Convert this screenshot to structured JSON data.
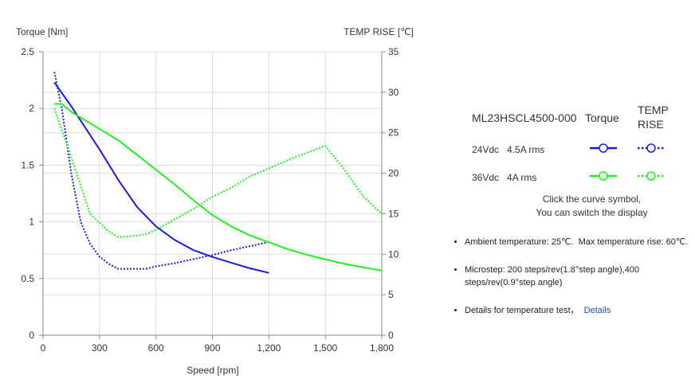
{
  "chart_data": {
    "type": "line",
    "title": "",
    "xlabel": "Speed [rpm]",
    "ylabel": "Torque  [Nm]",
    "ylabel_right": "TEMP RISE [℃]",
    "xlim": [
      0,
      1800
    ],
    "ylim": [
      0,
      2.5
    ],
    "ylim_right": [
      0,
      35
    ],
    "x_ticks": [
      "0",
      "300",
      "600",
      "900",
      "1,200",
      "1,500",
      "1,800"
    ],
    "y_ticks": [
      "0",
      "0.5",
      "1",
      "1.5",
      "2",
      "2.5"
    ],
    "y_right_ticks": [
      "0",
      "5",
      "10",
      "15",
      "20",
      "25",
      "30",
      "35"
    ],
    "grid": true,
    "series": [
      {
        "name": "24Vdc 4.5A rms Torque",
        "axis": "left",
        "color": "#1a1adb",
        "style": "solid",
        "points": [
          [
            60,
            2.23
          ],
          [
            150,
            2.02
          ],
          [
            300,
            1.64
          ],
          [
            400,
            1.37
          ],
          [
            500,
            1.13
          ],
          [
            600,
            0.96
          ],
          [
            700,
            0.84
          ],
          [
            800,
            0.75
          ],
          [
            900,
            0.69
          ],
          [
            1000,
            0.64
          ],
          [
            1100,
            0.59
          ],
          [
            1200,
            0.55
          ]
        ]
      },
      {
        "name": "24Vdc 4.5A rms TEMP RISE",
        "axis": "right",
        "color": "#1a1adb",
        "style": "dotted",
        "points": [
          [
            60,
            32.5
          ],
          [
            100,
            28
          ],
          [
            150,
            20
          ],
          [
            200,
            14
          ],
          [
            250,
            11.3
          ],
          [
            300,
            9.7
          ],
          [
            350,
            8.8
          ],
          [
            400,
            8.2
          ],
          [
            450,
            8.2
          ],
          [
            500,
            8.2
          ],
          [
            550,
            8.2
          ],
          [
            600,
            8.5
          ],
          [
            700,
            8.9
          ],
          [
            800,
            9.4
          ],
          [
            900,
            9.9
          ],
          [
            1000,
            10.5
          ],
          [
            1100,
            11.0
          ],
          [
            1200,
            11.5
          ]
        ]
      },
      {
        "name": "36Vdc 4A rms Torque",
        "axis": "left",
        "color": "#22ee22",
        "style": "solid",
        "points": [
          [
            60,
            2.04
          ],
          [
            100,
            2.04
          ],
          [
            150,
            1.97
          ],
          [
            250,
            1.87
          ],
          [
            300,
            1.82
          ],
          [
            400,
            1.72
          ],
          [
            500,
            1.59
          ],
          [
            600,
            1.46
          ],
          [
            700,
            1.33
          ],
          [
            800,
            1.19
          ],
          [
            900,
            1.06
          ],
          [
            1000,
            0.96
          ],
          [
            1100,
            0.88
          ],
          [
            1200,
            0.82
          ],
          [
            1300,
            0.76
          ],
          [
            1400,
            0.71
          ],
          [
            1500,
            0.67
          ],
          [
            1600,
            0.63
          ],
          [
            1700,
            0.6
          ],
          [
            1800,
            0.57
          ]
        ]
      },
      {
        "name": "36Vdc 4A rms TEMP RISE",
        "axis": "right",
        "color": "#22ee22",
        "style": "dotted",
        "points": [
          [
            60,
            28
          ],
          [
            150,
            22
          ],
          [
            250,
            15
          ],
          [
            350,
            12.8
          ],
          [
            400,
            12.1
          ],
          [
            500,
            12.3
          ],
          [
            550,
            12.5
          ],
          [
            600,
            13
          ],
          [
            700,
            14.3
          ],
          [
            800,
            15.6
          ],
          [
            900,
            17.1
          ],
          [
            1000,
            18.2
          ],
          [
            1100,
            19.6
          ],
          [
            1200,
            20.6
          ],
          [
            1300,
            21.6
          ],
          [
            1400,
            22.5
          ],
          [
            1500,
            23.4
          ],
          [
            1600,
            20.5
          ],
          [
            1700,
            17.2
          ],
          [
            1800,
            15
          ]
        ]
      }
    ]
  },
  "legend": {
    "model": "ML23HSCL4500-000",
    "torque_header": "Torque",
    "temp_header": "TEMP RISE",
    "rows": [
      {
        "label": "24Vdc   4.5A rms",
        "color": "#1a1adb"
      },
      {
        "label": "36Vdc   4A rms",
        "color": "#22ee22"
      }
    ],
    "hint_line1": "Click the curve symbol,",
    "hint_line2": "You can switch the display"
  },
  "notes": {
    "ambient": "Ambient temperature: 25℃.  Max temperature rise: 60℃.",
    "microstep": "Microstep: 200 steps/rev(1.8°step angle),400 steps/rev(0.9°step angle)",
    "details_text": "Details for temperature test，",
    "details_link": "Details"
  }
}
